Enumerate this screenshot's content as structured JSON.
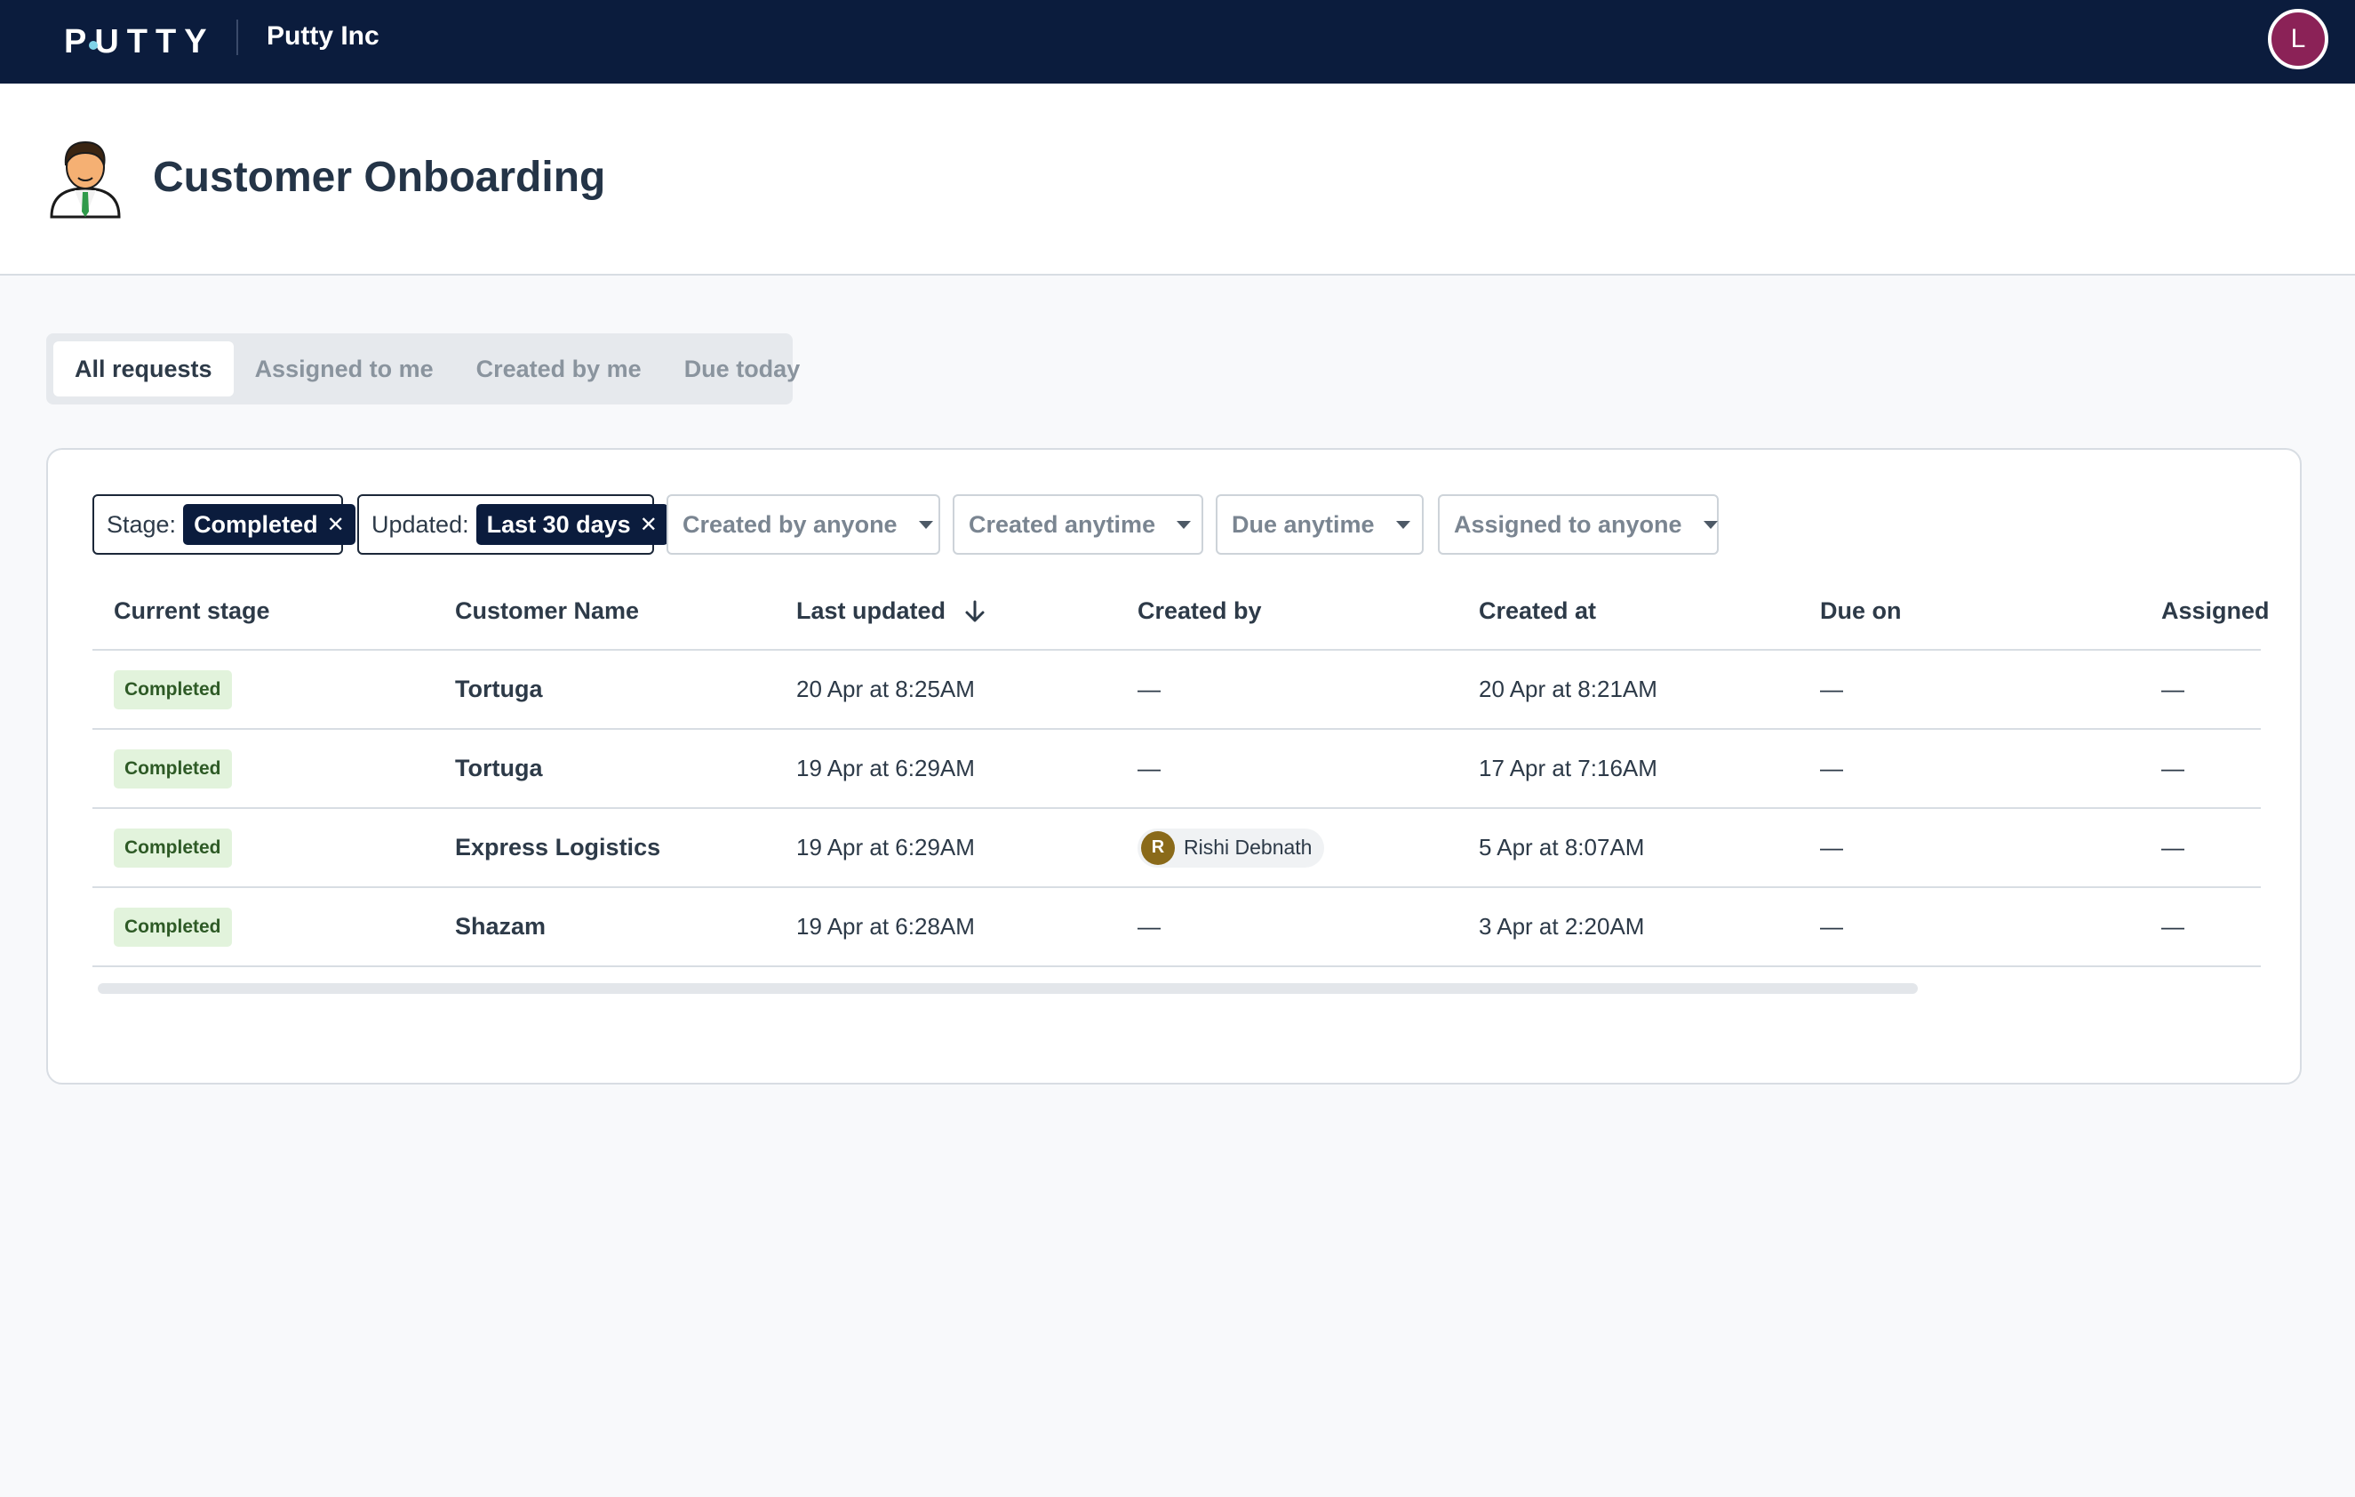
{
  "topbar": {
    "logo": "PUTTY",
    "org_name": "Putty Inc",
    "user_initial": "L"
  },
  "header": {
    "title": "Customer Onboarding",
    "icon": "businessman-icon"
  },
  "tabs": [
    {
      "label": "All requests",
      "active": true
    },
    {
      "label": "Assigned to me",
      "active": false
    },
    {
      "label": "Created by me",
      "active": false
    },
    {
      "label": "Due today",
      "active": false
    }
  ],
  "filters": {
    "stage": {
      "label": "Stage:",
      "value": "Completed"
    },
    "updated": {
      "label": "Updated:",
      "value": "Last 30 days"
    },
    "created_by": "Created by anyone",
    "created_at": "Created anytime",
    "due": "Due anytime",
    "assigned": "Assigned to anyone"
  },
  "table": {
    "columns": [
      "Current stage",
      "Customer Name",
      "Last updated",
      "Created by",
      "Created at",
      "Due on",
      "Assigned"
    ],
    "rows": [
      {
        "stage": "Completed",
        "customer": "Tortuga",
        "last_updated": "20 Apr at 8:25AM",
        "created_by": "—",
        "created_at": "20 Apr at 8:21AM",
        "due_on": "—",
        "assigned": "—"
      },
      {
        "stage": "Completed",
        "customer": "Tortuga",
        "last_updated": "19 Apr at 6:29AM",
        "created_by": "—",
        "created_at": "17 Apr at 7:16AM",
        "due_on": "—",
        "assigned": "—"
      },
      {
        "stage": "Completed",
        "customer": "Express Logistics",
        "last_updated": "19 Apr at 6:29AM",
        "created_by_initial": "R",
        "created_by": "Rishi Debnath",
        "created_at": "5 Apr at 8:07AM",
        "due_on": "—",
        "assigned": "—"
      },
      {
        "stage": "Completed",
        "customer": "Shazam",
        "last_updated": "19 Apr at 6:28AM",
        "created_by": "—",
        "created_at": "3 Apr at 2:20AM",
        "due_on": "—",
        "assigned": "—"
      }
    ]
  },
  "colors": {
    "topbar": "#0b1c3d",
    "user_avatar": "#8b2257",
    "badge_bg": "#e2f3dc",
    "person_avatar": "#8a6a1a"
  }
}
